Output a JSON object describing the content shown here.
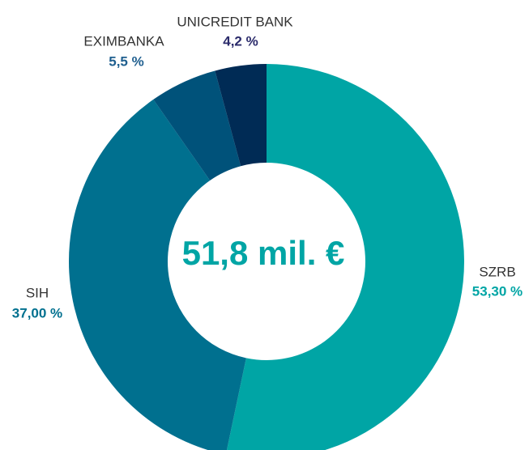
{
  "chart_data": {
    "type": "donut",
    "center_label": "51,8 mil. €",
    "categories": [
      "SZRB",
      "SIH",
      "EXIMBANKA",
      "UNICREDIT BANK"
    ],
    "values": [
      53.3,
      37.0,
      5.5,
      4.2
    ],
    "value_labels": [
      "53,30 %",
      "37,00 %",
      "5,5 %",
      "4,2 %"
    ],
    "colors": [
      "#00a5a5",
      "#00708f",
      "#00527a",
      "#002b55"
    ],
    "label_colors": [
      "#00a5a5",
      "#00708f",
      "#1f5f8f",
      "#2b2b6b"
    ]
  }
}
